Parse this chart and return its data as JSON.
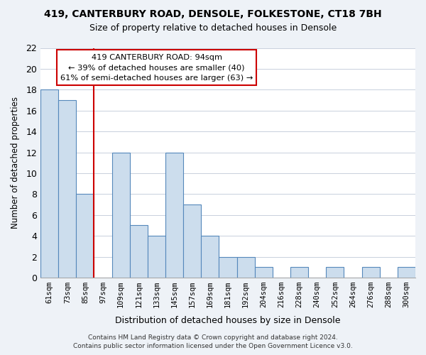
{
  "title": "419, CANTERBURY ROAD, DENSOLE, FOLKESTONE, CT18 7BH",
  "subtitle": "Size of property relative to detached houses in Densole",
  "xlabel": "Distribution of detached houses by size in Densole",
  "ylabel": "Number of detached properties",
  "bin_labels": [
    "61sqm",
    "73sqm",
    "85sqm",
    "97sqm",
    "109sqm",
    "121sqm",
    "133sqm",
    "145sqm",
    "157sqm",
    "169sqm",
    "181sqm",
    "192sqm",
    "204sqm",
    "216sqm",
    "228sqm",
    "240sqm",
    "252sqm",
    "264sqm",
    "276sqm",
    "288sqm",
    "300sqm"
  ],
  "bar_heights": [
    18,
    17,
    8,
    0,
    12,
    5,
    4,
    12,
    7,
    4,
    2,
    2,
    1,
    0,
    1,
    0,
    1,
    0,
    1,
    0,
    1
  ],
  "bar_color": "#ccdded",
  "bar_edge_color": "#5588bb",
  "vline_color": "#cc0000",
  "annotation_line1": "419 CANTERBURY ROAD: 94sqm",
  "annotation_line2": "← 39% of detached houses are smaller (40)",
  "annotation_line3": "61% of semi-detached houses are larger (63) →",
  "annotation_box_color": "#ffffff",
  "annotation_box_edge": "#cc0000",
  "ylim": [
    0,
    22
  ],
  "yticks": [
    0,
    2,
    4,
    6,
    8,
    10,
    12,
    14,
    16,
    18,
    20,
    22
  ],
  "footer_line1": "Contains HM Land Registry data © Crown copyright and database right 2024.",
  "footer_line2": "Contains public sector information licensed under the Open Government Licence v3.0.",
  "background_color": "#eef2f7",
  "plot_bg_color": "#ffffff",
  "grid_color": "#c8d0dc"
}
